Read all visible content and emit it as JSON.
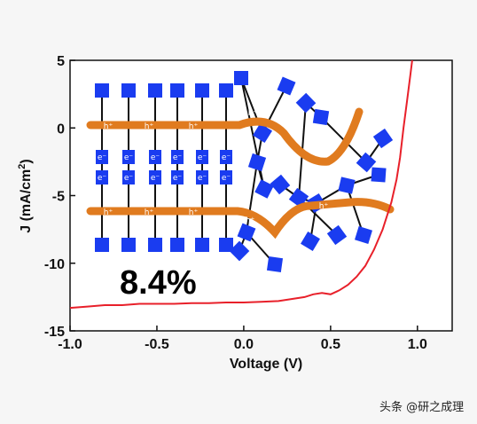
{
  "chart_data": {
    "type": "line",
    "xlabel": "Voltage (V)",
    "ylabel": "J (mA/cm²)",
    "ylabel_main": "J (mA/cm",
    "ylabel_sup": "2",
    "ylabel_end": ")",
    "xlim": [
      -1.0,
      1.2
    ],
    "ylim": [
      -15,
      5
    ],
    "xticks": [
      "-1.0",
      "-0.5",
      "0.0",
      "0.5",
      "1.0"
    ],
    "xtick_values": [
      -1.0,
      -0.5,
      0.0,
      0.5,
      1.0
    ],
    "yticks": [
      "5",
      "0",
      "-5",
      "-10",
      "-15"
    ],
    "ytick_values": [
      5,
      0,
      -5,
      -10,
      -15
    ],
    "grid": false,
    "series": [
      {
        "color": "#e8202a",
        "x": [
          -1.0,
          -0.9,
          -0.8,
          -0.7,
          -0.6,
          -0.5,
          -0.4,
          -0.3,
          -0.2,
          -0.1,
          0.0,
          0.1,
          0.2,
          0.3,
          0.35,
          0.4,
          0.45,
          0.5,
          0.55,
          0.6,
          0.65,
          0.7,
          0.75,
          0.8,
          0.85,
          0.88,
          0.9,
          0.92,
          0.94,
          0.96,
          0.97
        ],
        "y": [
          -13.3,
          -13.2,
          -13.1,
          -13.1,
          -13.0,
          -13.0,
          -13.0,
          -12.95,
          -12.95,
          -12.9,
          -12.9,
          -12.85,
          -12.8,
          -12.6,
          -12.5,
          -12.3,
          -12.2,
          -12.3,
          -12.0,
          -11.6,
          -11.0,
          -10.2,
          -9.0,
          -7.5,
          -5.5,
          -3.8,
          -2.2,
          0.0,
          2.0,
          4.0,
          5.0
        ]
      }
    ],
    "annotation": "8.4%"
  },
  "illustration": {
    "hole_label": "h⁺",
    "electron_label": "e⁻",
    "node_color": "#1a3cf0",
    "chain_color": "#e07b1f"
  },
  "watermark": "头条 @研之成理"
}
